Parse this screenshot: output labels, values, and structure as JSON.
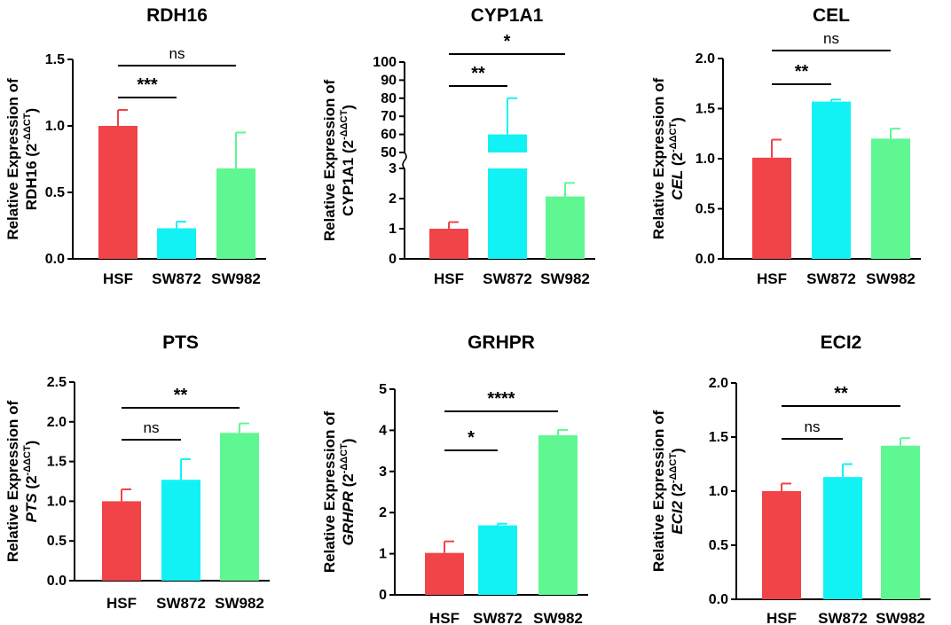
{
  "figure": {
    "colors": {
      "HSF": "#f04448",
      "SW872": "#12f2f5",
      "SW982": "#5ef791",
      "axis": "#000000"
    }
  },
  "chart_data": [
    {
      "type": "bar",
      "title": "RDH16",
      "ylabel_line1": "Relative Expression of",
      "ylabel_gene": "RDH16",
      "ylabel_gene_italic": false,
      "ylabel_suffix": "(2",
      "ylabel_exp": "-ΔΔCT",
      "ylabel_close": ")",
      "categories": [
        "HSF",
        "SW872",
        "SW982"
      ],
      "values": [
        1.0,
        0.23,
        0.68
      ],
      "errors": [
        0.12,
        0.05,
        0.27
      ],
      "ylim": [
        0,
        1.5
      ],
      "yticks": [
        "0.0",
        "0.5",
        "1.0",
        "1.5"
      ],
      "comparisons": [
        {
          "from": 0,
          "to": 1,
          "label": "***"
        },
        {
          "from": 0,
          "to": 2,
          "label": "ns"
        }
      ]
    },
    {
      "type": "bar",
      "title": "CYP1A1",
      "ylabel_line1": "Relative Expression of",
      "ylabel_gene": "CYP1A1",
      "ylabel_gene_italic": false,
      "ylabel_suffix": "(2",
      "ylabel_exp": "-ΔΔCT",
      "ylabel_close": ")",
      "categories": [
        "HSF",
        "SW872",
        "SW982"
      ],
      "values": [
        1.0,
        60.0,
        2.07
      ],
      "errors": [
        0.22,
        20.0,
        0.45
      ],
      "axis_break": {
        "lower_ylim": [
          0,
          3
        ],
        "upper_ylim": [
          50,
          100
        ]
      },
      "yticks": [
        "0",
        "1",
        "2",
        "3",
        "50",
        "60",
        "70",
        "80",
        "90",
        "100"
      ],
      "comparisons": [
        {
          "from": 0,
          "to": 1,
          "label": "**"
        },
        {
          "from": 0,
          "to": 2,
          "label": "*"
        }
      ]
    },
    {
      "type": "bar",
      "title": "CEL",
      "ylabel_line1": "Relative Expression of",
      "ylabel_gene": "CEL",
      "ylabel_gene_italic": true,
      "ylabel_suffix": "(2",
      "ylabel_exp": "-ΔΔCT",
      "ylabel_close": ")",
      "categories": [
        "HSF",
        "SW872",
        "SW982"
      ],
      "values": [
        1.01,
        1.57,
        1.2
      ],
      "errors": [
        0.18,
        0.02,
        0.1
      ],
      "ylim": [
        0,
        2.0
      ],
      "yticks": [
        "0.0",
        "0.5",
        "1.0",
        "1.5",
        "2.0"
      ],
      "comparisons": [
        {
          "from": 0,
          "to": 1,
          "label": "**"
        },
        {
          "from": 0,
          "to": 2,
          "label": "ns"
        }
      ]
    },
    {
      "type": "bar",
      "title": "PTS",
      "ylabel_line1": "Relative Expression of",
      "ylabel_gene": "PTS",
      "ylabel_gene_italic": true,
      "ylabel_suffix": "(2",
      "ylabel_exp": "-ΔΔCT",
      "ylabel_close": ")",
      "categories": [
        "HSF",
        "SW872",
        "SW982"
      ],
      "values": [
        1.0,
        1.27,
        1.86
      ],
      "errors": [
        0.15,
        0.26,
        0.12
      ],
      "ylim": [
        0,
        2.5
      ],
      "yticks": [
        "0.0",
        "0.5",
        "1.0",
        "1.5",
        "2.0",
        "2.5"
      ],
      "comparisons": [
        {
          "from": 0,
          "to": 1,
          "label": "ns"
        },
        {
          "from": 0,
          "to": 2,
          "label": "**"
        }
      ]
    },
    {
      "type": "bar",
      "title": "GRHPR",
      "ylabel_line1": "Relative Expression of",
      "ylabel_gene": "GRHPR",
      "ylabel_gene_italic": true,
      "ylabel_suffix": "(2",
      "ylabel_exp": "-ΔΔCT",
      "ylabel_close": ")",
      "categories": [
        "HSF",
        "SW872",
        "SW982"
      ],
      "values": [
        1.02,
        1.69,
        3.88
      ],
      "errors": [
        0.28,
        0.04,
        0.13
      ],
      "ylim": [
        0,
        5
      ],
      "yticks": [
        "0",
        "1",
        "2",
        "3",
        "4",
        "5"
      ],
      "comparisons": [
        {
          "from": 0,
          "to": 1,
          "label": "*"
        },
        {
          "from": 0,
          "to": 2,
          "label": "****"
        }
      ]
    },
    {
      "type": "bar",
      "title": "ECI2",
      "ylabel_line1": "Relative Expression of",
      "ylabel_gene": "ECI2",
      "ylabel_gene_italic": true,
      "ylabel_suffix": "(2",
      "ylabel_exp": "-ΔΔCT",
      "ylabel_close": ")",
      "categories": [
        "HSF",
        "SW872",
        "SW982"
      ],
      "values": [
        1.0,
        1.13,
        1.42
      ],
      "errors": [
        0.07,
        0.12,
        0.07
      ],
      "ylim": [
        0,
        2.0
      ],
      "yticks": [
        "0.0",
        "0.5",
        "1.0",
        "1.5",
        "2.0"
      ],
      "comparisons": [
        {
          "from": 0,
          "to": 1,
          "label": "ns"
        },
        {
          "from": 0,
          "to": 2,
          "label": "**"
        }
      ]
    }
  ]
}
